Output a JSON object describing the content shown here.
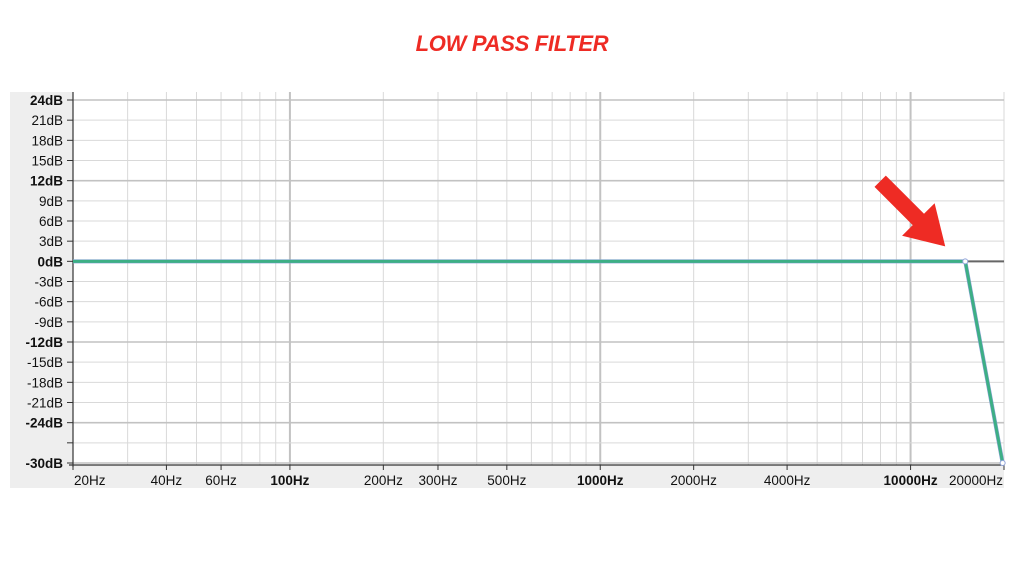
{
  "title": "LOW PASS FILTER",
  "colors": {
    "title": "#ee2b24",
    "response": "#3daf85",
    "reference": "#666666",
    "arrow": "#ee2b24",
    "panel": "#eeeeee",
    "grid_minor": "#d9d9d9",
    "grid_major": "#c2c2c2"
  },
  "chart_data": {
    "type": "line",
    "title": "LOW PASS FILTER",
    "xlabel": "",
    "ylabel": "",
    "x_scale": "log",
    "xlim": [
      20,
      20000
    ],
    "ylim": [
      -30,
      24
    ],
    "grid": true,
    "x_ticks": [
      {
        "value": 20,
        "label": "20Hz",
        "bold": false
      },
      {
        "value": 40,
        "label": "40Hz",
        "bold": false
      },
      {
        "value": 60,
        "label": "60Hz",
        "bold": false
      },
      {
        "value": 100,
        "label": "100Hz",
        "bold": true
      },
      {
        "value": 200,
        "label": "200Hz",
        "bold": false
      },
      {
        "value": 300,
        "label": "300Hz",
        "bold": false
      },
      {
        "value": 500,
        "label": "500Hz",
        "bold": false
      },
      {
        "value": 1000,
        "label": "1000Hz",
        "bold": true
      },
      {
        "value": 2000,
        "label": "2000Hz",
        "bold": false
      },
      {
        "value": 4000,
        "label": "4000Hz",
        "bold": false
      },
      {
        "value": 10000,
        "label": "10000Hz",
        "bold": true
      },
      {
        "value": 20000,
        "label": "20000Hz",
        "bold": false
      }
    ],
    "y_ticks": [
      {
        "value": 24,
        "label": "24dB",
        "bold": true
      },
      {
        "value": 21,
        "label": "21dB",
        "bold": false
      },
      {
        "value": 18,
        "label": "18dB",
        "bold": false
      },
      {
        "value": 15,
        "label": "15dB",
        "bold": false
      },
      {
        "value": 12,
        "label": "12dB",
        "bold": true
      },
      {
        "value": 9,
        "label": "9dB",
        "bold": false
      },
      {
        "value": 6,
        "label": "6dB",
        "bold": false
      },
      {
        "value": 3,
        "label": "3dB",
        "bold": false
      },
      {
        "value": 0,
        "label": "0dB",
        "bold": true
      },
      {
        "value": -3,
        "label": "-3dB",
        "bold": false
      },
      {
        "value": -6,
        "label": "-6dB",
        "bold": false
      },
      {
        "value": -9,
        "label": "-9dB",
        "bold": false
      },
      {
        "value": -12,
        "label": "-12dB",
        "bold": true
      },
      {
        "value": -15,
        "label": "-15dB",
        "bold": false
      },
      {
        "value": -18,
        "label": "-18dB",
        "bold": false
      },
      {
        "value": -21,
        "label": "-21dB",
        "bold": false
      },
      {
        "value": -24,
        "label": "-24dB",
        "bold": true
      },
      {
        "value": -27,
        "label": "",
        "bold": false
      },
      {
        "value": -30,
        "label": "-30dB",
        "bold": true
      }
    ],
    "series": [
      {
        "color": "#3daf85",
        "x": [
          20,
          15000,
          19800,
          20000
        ],
        "y": [
          0,
          0,
          -30,
          -30
        ]
      }
    ],
    "reference_line": {
      "x": [
        15000,
        20000
      ],
      "y": [
        0,
        0
      ],
      "color": "#666666"
    },
    "annotations": [
      {
        "type": "arrow",
        "points_to": {
          "x": 15000,
          "y": 0
        },
        "color": "#ee2b24"
      }
    ]
  }
}
